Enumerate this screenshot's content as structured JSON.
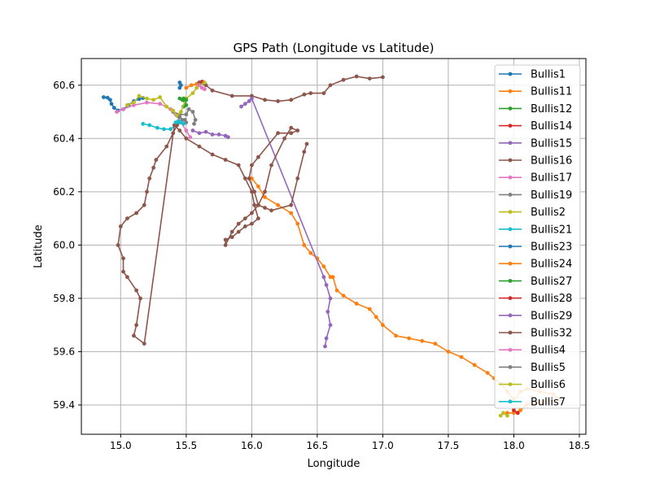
{
  "chart_data": {
    "type": "line",
    "title": "GPS Path (Longitude vs Latitude)",
    "xlabel": "Longitude",
    "ylabel": "Latitude",
    "xlim": [
      14.7,
      18.55
    ],
    "ylim": [
      59.29,
      60.7
    ],
    "xticks": [
      15.0,
      15.5,
      16.0,
      16.5,
      17.0,
      17.5,
      18.0,
      18.5
    ],
    "xtick_labels": [
      "15.0",
      "15.5",
      "16.0",
      "16.5",
      "17.0",
      "17.5",
      "18.0",
      "18.5"
    ],
    "yticks": [
      59.4,
      59.6,
      59.8,
      60.0,
      60.2,
      60.4,
      60.6
    ],
    "ytick_labels": [
      "59.4",
      "59.6",
      "59.8",
      "60.0",
      "60.2",
      "60.4",
      "60.6"
    ],
    "grid": true,
    "legend_position": "upper-right",
    "series": [
      {
        "name": "Bullis1",
        "color": "#1f77b4",
        "marker": "circle",
        "x": [
          14.87,
          14.9,
          14.92,
          14.93,
          14.95,
          14.98,
          15.02,
          15.06,
          15.1,
          15.14,
          15.17
        ],
        "y": [
          60.555,
          60.553,
          60.545,
          60.53,
          60.515,
          60.505,
          60.51,
          60.525,
          60.54,
          60.548,
          60.552
        ]
      },
      {
        "name": "Bullis11",
        "color": "#ff7f0e",
        "marker": "circle",
        "x": [
          15.5,
          15.54,
          15.58,
          15.61,
          15.63
        ],
        "y": [
          60.59,
          60.6,
          60.605,
          60.61,
          60.612
        ]
      },
      {
        "name": "Bullis12",
        "color": "#2ca02c",
        "marker": "circle",
        "x": [
          15.45,
          15.47,
          15.49,
          15.5,
          15.48
        ],
        "y": [
          60.55,
          60.545,
          60.54,
          60.525,
          60.52
        ]
      },
      {
        "name": "Bullis14",
        "color": "#d62728",
        "marker": "circle",
        "x": [
          15.6,
          15.62,
          15.63
        ],
        "y": [
          60.61,
          60.613,
          60.61
        ]
      },
      {
        "name": "Bullis15",
        "color": "#9467bd",
        "marker": "circle",
        "x": [
          15.55,
          15.6,
          15.65,
          15.7,
          15.75,
          15.8,
          15.82
        ],
        "y": [
          60.43,
          60.42,
          60.425,
          60.415,
          60.415,
          60.41,
          60.405
        ]
      },
      {
        "name": "Bullis16",
        "color": "#8c564b",
        "marker": "circle",
        "x": [
          15.6,
          15.65,
          15.7,
          15.85,
          16.0,
          16.1,
          16.2,
          16.3,
          16.4,
          16.45,
          16.55,
          16.6,
          16.7,
          16.8,
          16.9,
          17.0
        ],
        "y": [
          60.61,
          60.6,
          60.58,
          60.56,
          60.56,
          60.545,
          60.54,
          60.545,
          60.565,
          60.57,
          60.57,
          60.6,
          60.62,
          60.633,
          60.625,
          60.63
        ]
      },
      {
        "name": "Bullis17",
        "color": "#e377c2",
        "marker": "circle",
        "x": [
          14.97,
          15.02,
          15.1,
          15.2,
          15.3,
          15.38,
          15.42,
          15.46,
          15.5,
          15.53
        ],
        "y": [
          60.5,
          60.51,
          60.525,
          60.535,
          60.53,
          60.51,
          60.49,
          60.46,
          60.43,
          60.405
        ]
      },
      {
        "name": "Bullis19",
        "color": "#7f7f7f",
        "marker": "circle",
        "x": [
          15.4,
          15.45,
          15.5,
          15.52,
          15.55,
          15.57,
          15.56
        ],
        "y": [
          60.5,
          60.49,
          60.49,
          60.51,
          60.5,
          60.47,
          60.455
        ]
      },
      {
        "name": "Bullis2",
        "color": "#bcbd22",
        "marker": "circle",
        "x": [
          15.05,
          15.1,
          15.14,
          15.2,
          15.25,
          15.3,
          15.35,
          15.4,
          15.43,
          15.46,
          15.5,
          15.55,
          15.58,
          15.6,
          15.64
        ],
        "y": [
          60.525,
          60.535,
          60.56,
          60.55,
          60.545,
          60.555,
          60.52,
          60.505,
          60.485,
          60.5,
          60.55,
          60.57,
          60.59,
          60.6,
          60.61
        ]
      },
      {
        "name": "Bullis21",
        "color": "#17becf",
        "marker": "circle",
        "x": [
          15.17,
          15.22,
          15.28,
          15.33,
          15.38,
          15.42,
          15.45
        ],
        "y": [
          60.455,
          60.45,
          60.44,
          60.435,
          60.435,
          60.45,
          60.46
        ]
      },
      {
        "name": "Bullis23",
        "color": "#1f77b4",
        "marker": "circle",
        "x": [
          15.45,
          15.46,
          15.45
        ],
        "y": [
          60.61,
          60.6,
          60.59
        ]
      },
      {
        "name": "Bullis24",
        "color": "#ff7f0e",
        "marker": "circle",
        "x": [
          16.0,
          16.05,
          16.1,
          16.2,
          16.3,
          16.35,
          16.4,
          16.45,
          16.5,
          16.55,
          16.6,
          16.62,
          16.65,
          16.7,
          16.8,
          16.9,
          16.95,
          17.0,
          17.1,
          17.2,
          17.3,
          17.4,
          17.5,
          17.6,
          17.7,
          17.8,
          17.85,
          17.9,
          17.95,
          18.0,
          18.05,
          18.1,
          18.2,
          18.3,
          18.35,
          18.2,
          18.1,
          18.05,
          18.0,
          17.95
        ],
        "y": [
          60.25,
          60.22,
          60.18,
          60.15,
          60.12,
          60.08,
          60.0,
          59.97,
          59.95,
          59.92,
          59.88,
          59.88,
          59.83,
          59.81,
          59.78,
          59.76,
          59.73,
          59.7,
          59.66,
          59.65,
          59.64,
          59.63,
          59.6,
          59.58,
          59.55,
          59.52,
          59.5,
          59.48,
          59.45,
          59.42,
          59.45,
          59.46,
          59.45,
          59.44,
          59.42,
          59.41,
          59.4,
          59.38,
          59.37,
          59.37
        ]
      },
      {
        "name": "Bullis27",
        "color": "#2ca02c",
        "marker": "circle",
        "x": [
          15.48,
          15.5
        ],
        "y": [
          60.55,
          60.545
        ]
      },
      {
        "name": "Bullis28",
        "color": "#d62728",
        "marker": "circle",
        "x": [
          18.0,
          18.03
        ],
        "y": [
          59.38,
          59.37
        ]
      },
      {
        "name": "Bullis29",
        "color": "#9467bd",
        "marker": "circle",
        "x": [
          15.92,
          15.95,
          15.98,
          16.0,
          16.55,
          16.57,
          16.6,
          16.58,
          16.6,
          16.57,
          16.56
        ],
        "y": [
          60.52,
          60.53,
          60.54,
          60.55,
          59.88,
          59.85,
          59.8,
          59.75,
          59.7,
          59.65,
          59.62
        ]
      },
      {
        "name": "Bullis32",
        "color": "#8c564b",
        "marker": "circle",
        "x": [
          15.43,
          15.4,
          15.35,
          15.27,
          15.25,
          15.22,
          15.2,
          15.18,
          15.12,
          15.05,
          15.0,
          14.98,
          15.02,
          15.02,
          15.05,
          15.12,
          15.15,
          15.12,
          15.1,
          15.18,
          15.41,
          15.45,
          15.5,
          15.6,
          15.7,
          15.8,
          15.9,
          15.95,
          16.0,
          16.02,
          16.05,
          16.0,
          15.95,
          15.9,
          15.85,
          15.8,
          15.8,
          15.85,
          15.9,
          15.95,
          16.0,
          16.05,
          16.1,
          16.15,
          16.25,
          16.3,
          16.35,
          16.3,
          16.2,
          16.05,
          16.0,
          15.98,
          16.02,
          16.05,
          16.1,
          16.15,
          16.3,
          16.35,
          16.4,
          16.42
        ],
        "y": [
          60.45,
          60.42,
          60.37,
          60.32,
          60.29,
          60.25,
          60.2,
          60.15,
          60.12,
          60.1,
          60.07,
          60.0,
          59.95,
          59.9,
          59.88,
          59.83,
          59.8,
          59.7,
          59.66,
          59.63,
          60.45,
          60.43,
          60.4,
          60.37,
          60.34,
          60.32,
          60.3,
          60.25,
          60.2,
          60.15,
          60.1,
          60.08,
          60.07,
          60.05,
          60.03,
          60.02,
          60.0,
          60.05,
          60.08,
          60.1,
          60.12,
          60.15,
          60.2,
          60.3,
          60.4,
          60.44,
          60.43,
          60.42,
          60.42,
          60.33,
          60.3,
          60.25,
          60.2,
          60.15,
          60.14,
          60.13,
          60.15,
          60.25,
          60.35,
          60.38
        ]
      },
      {
        "name": "Bullis4",
        "color": "#e377c2",
        "marker": "circle",
        "x": [
          15.6,
          15.62,
          15.64
        ],
        "y": [
          60.6,
          60.59,
          60.585
        ]
      },
      {
        "name": "Bullis5",
        "color": "#7f7f7f",
        "marker": "circle",
        "x": [
          15.45,
          15.47,
          15.49,
          15.5
        ],
        "y": [
          60.48,
          60.47,
          60.47,
          60.46
        ]
      },
      {
        "name": "Bullis6",
        "color": "#bcbd22",
        "marker": "circle",
        "x": [
          17.9,
          17.92,
          17.95
        ],
        "y": [
          59.36,
          59.37,
          59.36
        ]
      },
      {
        "name": "Bullis7",
        "color": "#17becf",
        "marker": "circle",
        "x": [
          15.42,
          15.44,
          15.46,
          15.48
        ],
        "y": [
          60.46,
          60.465,
          60.46,
          60.455
        ]
      }
    ]
  }
}
